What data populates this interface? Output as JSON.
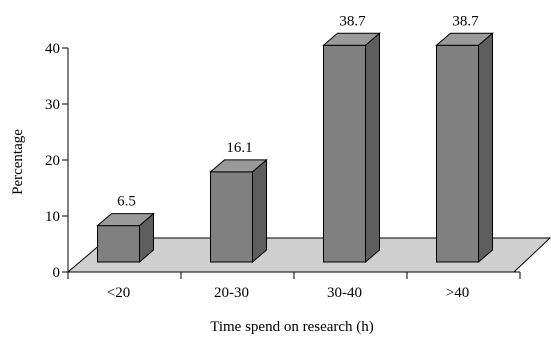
{
  "chart_data": {
    "type": "bar",
    "categories": [
      "<20",
      "20-30",
      "30-40",
      ">40"
    ],
    "values": [
      6.5,
      16.1,
      38.7,
      38.7
    ],
    "value_labels": [
      "6.5",
      "16.1",
      "38.7",
      "38.7"
    ],
    "xlabel": "Time spend on research (h)",
    "ylabel": "Percentage",
    "ylim": [
      0,
      40
    ],
    "yticks": [
      0,
      10,
      20,
      30,
      40
    ],
    "ytick_labels": [
      "0",
      "10",
      "20",
      "30",
      "40"
    ],
    "grid": false,
    "style": "3d",
    "colors": {
      "bar": "#808080",
      "bar_side": "#5e5e5e",
      "bar_top": "#9a9a9a",
      "floor": "#cfcfcf"
    }
  }
}
